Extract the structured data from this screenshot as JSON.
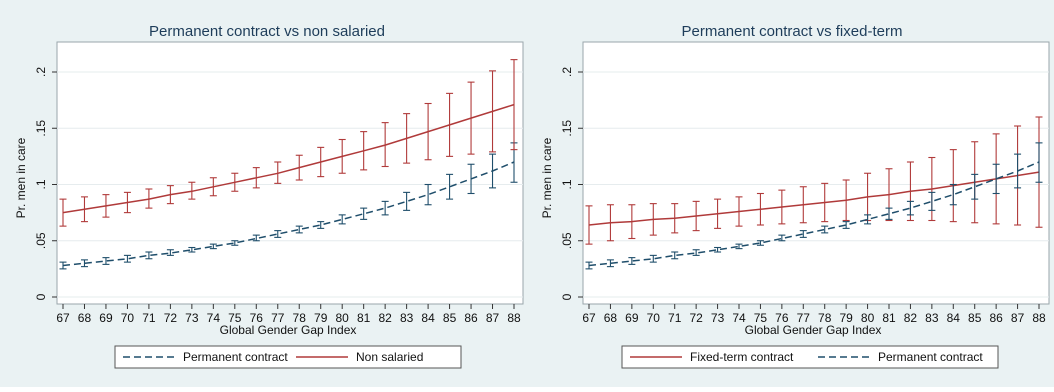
{
  "chart_data": [
    {
      "type": "line",
      "title": "Permanent contract vs non salaried",
      "xlabel": "Global Gender Gap Index",
      "ylabel": "Pr. men in care",
      "xlim": [
        67,
        88
      ],
      "ylim": [
        0,
        0.22
      ],
      "x_ticks": [
        67,
        68,
        69,
        70,
        71,
        72,
        73,
        74,
        75,
        76,
        77,
        78,
        79,
        80,
        81,
        82,
        83,
        84,
        85,
        86,
        87,
        88
      ],
      "y_ticks": [
        0,
        0.05,
        0.1,
        0.15,
        0.2
      ],
      "y_tick_labels": [
        "0",
        ".05",
        ".1",
        ".15",
        ".2"
      ],
      "grid": true,
      "legend_position": "bottom",
      "series": [
        {
          "name": "Permanent contract",
          "style": "dashed",
          "color": "#1f4e6b",
          "x": [
            67,
            68,
            69,
            70,
            71,
            72,
            73,
            74,
            75,
            76,
            77,
            78,
            79,
            80,
            81,
            82,
            83,
            84,
            85,
            86,
            87,
            88
          ],
          "y": [
            0.028,
            0.03,
            0.032,
            0.034,
            0.037,
            0.039,
            0.042,
            0.045,
            0.048,
            0.052,
            0.056,
            0.06,
            0.064,
            0.069,
            0.074,
            0.079,
            0.085,
            0.091,
            0.098,
            0.105,
            0.112,
            0.12
          ],
          "lower": [
            0.025,
            0.027,
            0.029,
            0.031,
            0.034,
            0.037,
            0.04,
            0.043,
            0.046,
            0.05,
            0.053,
            0.057,
            0.061,
            0.065,
            0.069,
            0.073,
            0.077,
            0.082,
            0.087,
            0.092,
            0.097,
            0.102
          ],
          "upper": [
            0.031,
            0.033,
            0.035,
            0.037,
            0.04,
            0.042,
            0.044,
            0.047,
            0.05,
            0.055,
            0.059,
            0.063,
            0.067,
            0.073,
            0.079,
            0.085,
            0.093,
            0.1,
            0.109,
            0.118,
            0.127,
            0.137
          ]
        },
        {
          "name": "Non salaried",
          "style": "solid",
          "color": "#b03a3a",
          "x": [
            67,
            68,
            69,
            70,
            71,
            72,
            73,
            74,
            75,
            76,
            77,
            78,
            79,
            80,
            81,
            82,
            83,
            84,
            85,
            86,
            87,
            88
          ],
          "y": [
            0.075,
            0.078,
            0.081,
            0.084,
            0.087,
            0.091,
            0.094,
            0.098,
            0.102,
            0.106,
            0.11,
            0.115,
            0.12,
            0.125,
            0.13,
            0.135,
            0.141,
            0.147,
            0.153,
            0.159,
            0.165,
            0.171
          ],
          "lower": [
            0.063,
            0.067,
            0.071,
            0.075,
            0.079,
            0.083,
            0.087,
            0.09,
            0.094,
            0.097,
            0.101,
            0.104,
            0.107,
            0.11,
            0.113,
            0.116,
            0.119,
            0.122,
            0.125,
            0.127,
            0.129,
            0.131
          ],
          "upper": [
            0.087,
            0.089,
            0.091,
            0.093,
            0.096,
            0.099,
            0.102,
            0.106,
            0.11,
            0.115,
            0.12,
            0.126,
            0.133,
            0.14,
            0.147,
            0.155,
            0.163,
            0.172,
            0.181,
            0.191,
            0.201,
            0.211
          ]
        }
      ]
    },
    {
      "type": "line",
      "title": "Permanent contract vs fixed-term",
      "xlabel": "Global Gender Gap Index",
      "ylabel": "Pr. men in care",
      "xlim": [
        67,
        88
      ],
      "ylim": [
        0,
        0.22
      ],
      "x_ticks": [
        67,
        68,
        69,
        70,
        71,
        72,
        73,
        74,
        75,
        76,
        77,
        78,
        79,
        80,
        81,
        82,
        83,
        84,
        85,
        86,
        87,
        88
      ],
      "y_ticks": [
        0,
        0.05,
        0.1,
        0.15,
        0.2
      ],
      "y_tick_labels": [
        "0",
        ".05",
        ".1",
        ".15",
        ".2"
      ],
      "grid": true,
      "legend_position": "bottom",
      "series": [
        {
          "name": "Fixed-term contract",
          "style": "solid",
          "color": "#b03a3a",
          "x": [
            67,
            68,
            69,
            70,
            71,
            72,
            73,
            74,
            75,
            76,
            77,
            78,
            79,
            80,
            81,
            82,
            83,
            84,
            85,
            86,
            87,
            88
          ],
          "y": [
            0.064,
            0.066,
            0.067,
            0.069,
            0.07,
            0.072,
            0.074,
            0.076,
            0.078,
            0.08,
            0.082,
            0.084,
            0.086,
            0.089,
            0.091,
            0.094,
            0.096,
            0.099,
            0.102,
            0.105,
            0.108,
            0.111
          ],
          "lower": [
            0.047,
            0.05,
            0.052,
            0.055,
            0.057,
            0.059,
            0.061,
            0.063,
            0.064,
            0.065,
            0.066,
            0.067,
            0.068,
            0.068,
            0.068,
            0.068,
            0.068,
            0.067,
            0.066,
            0.065,
            0.064,
            0.062
          ],
          "upper": [
            0.081,
            0.082,
            0.082,
            0.083,
            0.083,
            0.085,
            0.087,
            0.089,
            0.092,
            0.095,
            0.098,
            0.101,
            0.104,
            0.11,
            0.114,
            0.12,
            0.124,
            0.131,
            0.138,
            0.145,
            0.152,
            0.16
          ]
        },
        {
          "name": "Permanent contract",
          "style": "dashed",
          "color": "#1f4e6b",
          "x": [
            67,
            68,
            69,
            70,
            71,
            72,
            73,
            74,
            75,
            76,
            77,
            78,
            79,
            80,
            81,
            82,
            83,
            84,
            85,
            86,
            87,
            88
          ],
          "y": [
            0.028,
            0.03,
            0.032,
            0.034,
            0.037,
            0.039,
            0.042,
            0.045,
            0.048,
            0.052,
            0.056,
            0.06,
            0.064,
            0.069,
            0.074,
            0.079,
            0.085,
            0.091,
            0.098,
            0.105,
            0.112,
            0.12
          ],
          "lower": [
            0.025,
            0.027,
            0.029,
            0.031,
            0.034,
            0.037,
            0.04,
            0.043,
            0.046,
            0.05,
            0.053,
            0.057,
            0.061,
            0.065,
            0.069,
            0.073,
            0.077,
            0.082,
            0.087,
            0.092,
            0.097,
            0.102
          ],
          "upper": [
            0.031,
            0.033,
            0.035,
            0.037,
            0.04,
            0.042,
            0.044,
            0.047,
            0.05,
            0.055,
            0.059,
            0.063,
            0.067,
            0.073,
            0.079,
            0.085,
            0.093,
            0.1,
            0.109,
            0.118,
            0.127,
            0.137
          ]
        }
      ]
    }
  ]
}
